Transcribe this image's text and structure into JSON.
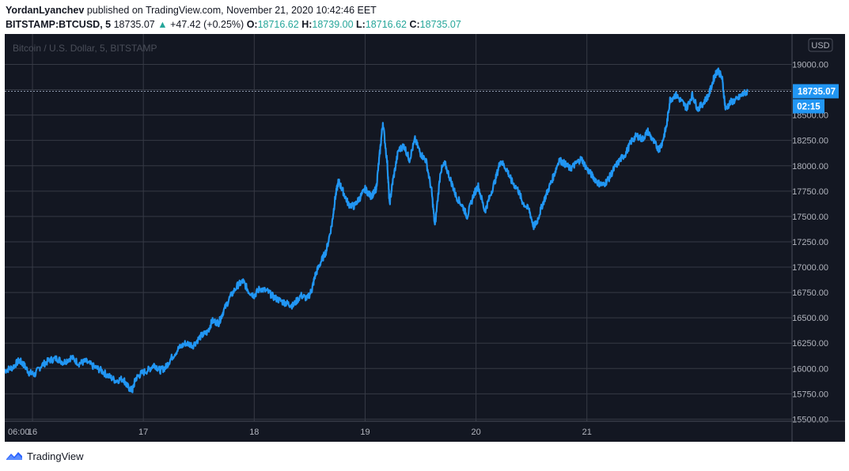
{
  "header": {
    "author": "YordanLyanchev",
    "published_text": "published on TradingView.com, November 21, 2020 10:42:46 EET",
    "symbol": "BITSTAMP:BTCUSD, 5",
    "last": "18735.07",
    "arrow": "▲",
    "change": "+47.42 (+0.25%)",
    "o_label": "O:",
    "o_value": "18716.62",
    "h_label": "H:",
    "h_value": "18739.00",
    "l_label": "L:",
    "l_value": "18716.62",
    "c_label": "C:",
    "c_value": "18735.07"
  },
  "footer": {
    "brand": "TradingView",
    "logo_icon": "tradingview-logo-icon"
  },
  "colors": {
    "background": "#131722",
    "grid": "#363a45",
    "line": "#2196f3",
    "axis_text": "#b2b5be",
    "tag_bg": "#2196f3",
    "teal": "#26a69a"
  },
  "chart_data": {
    "type": "line",
    "title": "Bitcoin / U.S. Dollar, 5, BITSTAMP",
    "currency": "USD",
    "x_range_days": [
      14.75,
      21.85
    ],
    "x_ticks": [
      {
        "label": "06:00",
        "x": 14.75
      },
      {
        "label": "16",
        "x": 15.0
      },
      {
        "label": "17",
        "x": 16.0
      },
      {
        "label": "18",
        "x": 17.0
      },
      {
        "label": "19",
        "x": 18.0
      },
      {
        "label": "20",
        "x": 19.0
      },
      {
        "label": "21",
        "x": 20.0
      }
    ],
    "ylim": [
      15480,
      19300
    ],
    "y_ticks": [
      15500,
      15750,
      16000,
      16250,
      16500,
      16750,
      17000,
      17250,
      17500,
      17750,
      18000,
      18250,
      18500,
      18750,
      19000
    ],
    "y_tick_labels": [
      "15500.00",
      "15750.00",
      "16000.00",
      "16250.00",
      "16500.00",
      "16750.00",
      "17000.00",
      "17250.00",
      "17500.00",
      "17750.00",
      "18000.00",
      "18250.00",
      "18500.00",
      "18750.00",
      "19000.00"
    ],
    "last_price": 18735.07,
    "last_price_label": "18735.07",
    "countdown": "02:15",
    "series": [
      {
        "values": [
          [
            14.75,
            15980
          ],
          [
            14.82,
            16010
          ],
          [
            14.88,
            16080
          ],
          [
            14.92,
            16040
          ],
          [
            14.97,
            15960
          ],
          [
            15.02,
            15940
          ],
          [
            15.08,
            16030
          ],
          [
            15.15,
            16080
          ],
          [
            15.22,
            16100
          ],
          [
            15.28,
            16060
          ],
          [
            15.35,
            16110
          ],
          [
            15.42,
            16050
          ],
          [
            15.48,
            16070
          ],
          [
            15.55,
            16020
          ],
          [
            15.62,
            15980
          ],
          [
            15.68,
            15930
          ],
          [
            15.75,
            15880
          ],
          [
            15.82,
            15900
          ],
          [
            15.85,
            15830
          ],
          [
            15.9,
            15780
          ],
          [
            15.93,
            15900
          ],
          [
            15.98,
            15950
          ],
          [
            16.05,
            15990
          ],
          [
            16.1,
            16040
          ],
          [
            16.15,
            15980
          ],
          [
            16.2,
            16010
          ],
          [
            16.25,
            16100
          ],
          [
            16.32,
            16200
          ],
          [
            16.38,
            16250
          ],
          [
            16.45,
            16230
          ],
          [
            16.52,
            16320
          ],
          [
            16.58,
            16360
          ],
          [
            16.62,
            16470
          ],
          [
            16.68,
            16450
          ],
          [
            16.72,
            16560
          ],
          [
            16.78,
            16700
          ],
          [
            16.85,
            16820
          ],
          [
            16.9,
            16860
          ],
          [
            16.95,
            16760
          ],
          [
            17.0,
            16720
          ],
          [
            17.05,
            16790
          ],
          [
            17.12,
            16760
          ],
          [
            17.18,
            16700
          ],
          [
            17.25,
            16660
          ],
          [
            17.3,
            16640
          ],
          [
            17.35,
            16620
          ],
          [
            17.42,
            16720
          ],
          [
            17.48,
            16690
          ],
          [
            17.52,
            16780
          ],
          [
            17.55,
            16920
          ],
          [
            17.6,
            17050
          ],
          [
            17.65,
            17160
          ],
          [
            17.7,
            17420
          ],
          [
            17.73,
            17680
          ],
          [
            17.76,
            17850
          ],
          [
            17.8,
            17750
          ],
          [
            17.85,
            17620
          ],
          [
            17.9,
            17600
          ],
          [
            17.95,
            17680
          ],
          [
            18.0,
            17770
          ],
          [
            18.05,
            17700
          ],
          [
            18.08,
            17730
          ],
          [
            18.1,
            17780
          ],
          [
            18.13,
            18100
          ],
          [
            18.16,
            18430
          ],
          [
            18.2,
            18020
          ],
          [
            18.22,
            17620
          ],
          [
            18.25,
            17850
          ],
          [
            18.3,
            18150
          ],
          [
            18.35,
            18200
          ],
          [
            18.4,
            18060
          ],
          [
            18.45,
            18260
          ],
          [
            18.5,
            18120
          ],
          [
            18.55,
            18050
          ],
          [
            18.6,
            17750
          ],
          [
            18.63,
            17400
          ],
          [
            18.68,
            17950
          ],
          [
            18.72,
            18020
          ],
          [
            18.78,
            17830
          ],
          [
            18.82,
            17700
          ],
          [
            18.88,
            17600
          ],
          [
            18.92,
            17500
          ],
          [
            18.98,
            17720
          ],
          [
            19.02,
            17800
          ],
          [
            19.08,
            17550
          ],
          [
            19.12,
            17680
          ],
          [
            19.18,
            17880
          ],
          [
            19.22,
            18050
          ],
          [
            19.28,
            17960
          ],
          [
            19.32,
            17850
          ],
          [
            19.38,
            17760
          ],
          [
            19.42,
            17640
          ],
          [
            19.48,
            17560
          ],
          [
            19.52,
            17400
          ],
          [
            19.55,
            17450
          ],
          [
            19.6,
            17620
          ],
          [
            19.65,
            17760
          ],
          [
            19.7,
            17900
          ],
          [
            19.75,
            18060
          ],
          [
            19.8,
            18020
          ],
          [
            19.85,
            17970
          ],
          [
            19.9,
            18020
          ],
          [
            19.95,
            18070
          ],
          [
            20.0,
            17970
          ],
          [
            20.05,
            17900
          ],
          [
            20.1,
            17830
          ],
          [
            20.15,
            17810
          ],
          [
            20.2,
            17880
          ],
          [
            20.25,
            17980
          ],
          [
            20.3,
            18060
          ],
          [
            20.35,
            18120
          ],
          [
            20.4,
            18240
          ],
          [
            20.45,
            18300
          ],
          [
            20.5,
            18260
          ],
          [
            20.55,
            18340
          ],
          [
            20.6,
            18240
          ],
          [
            20.65,
            18160
          ],
          [
            20.68,
            18230
          ],
          [
            20.72,
            18400
          ],
          [
            20.75,
            18650
          ],
          [
            20.8,
            18700
          ],
          [
            20.85,
            18640
          ],
          [
            20.9,
            18570
          ],
          [
            20.95,
            18700
          ],
          [
            21.0,
            18560
          ],
          [
            21.05,
            18620
          ],
          [
            21.1,
            18700
          ],
          [
            21.15,
            18880
          ],
          [
            21.18,
            18950
          ],
          [
            21.22,
            18860
          ],
          [
            21.25,
            18560
          ],
          [
            21.3,
            18630
          ],
          [
            21.35,
            18650
          ],
          [
            21.4,
            18700
          ],
          [
            21.45,
            18735
          ]
        ]
      }
    ]
  }
}
